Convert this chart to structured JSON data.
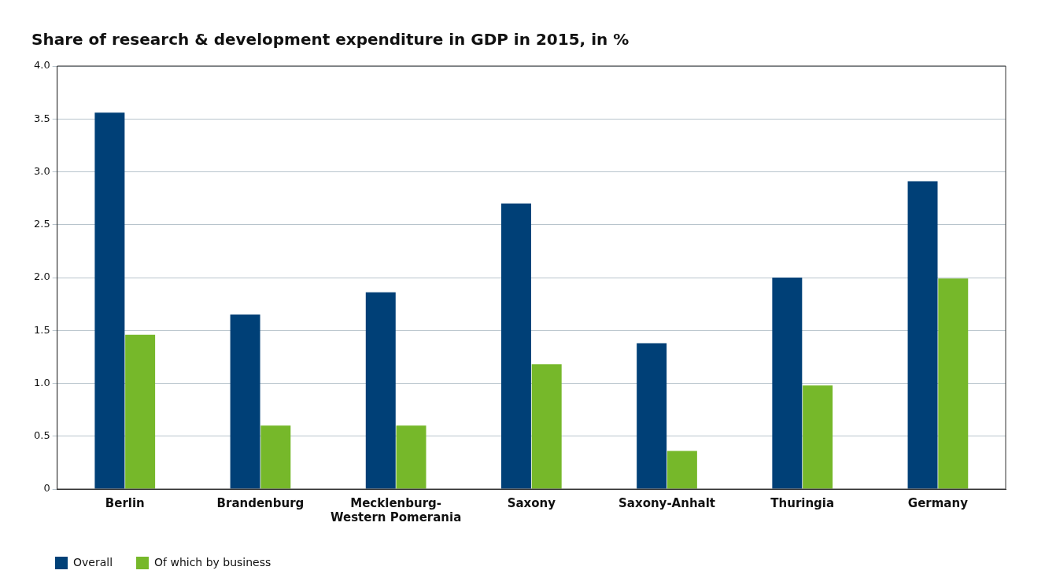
{
  "chart_data": {
    "type": "bar",
    "title": "Share of research & development expenditure in GDP in 2015, in %",
    "categories": [
      "Berlin",
      "Brandenburg",
      "Mecklenburg-Western Pomerania",
      "Saxony",
      "Saxony-Anhalt",
      "Thuringia",
      "Germany"
    ],
    "series": [
      {
        "name": "Overall",
        "color": "#004077",
        "values": [
          3.56,
          1.65,
          1.86,
          2.7,
          1.38,
          2.0,
          2.91
        ]
      },
      {
        "name": "Of which by business",
        "color": "#76b82a",
        "values": [
          1.46,
          0.6,
          0.6,
          1.18,
          0.36,
          0.98,
          1.99
        ]
      }
    ],
    "ylim": [
      0,
      4
    ],
    "yticks": [
      0,
      0.5,
      {
        "value": 1,
        "label": "1.0"
      },
      1.5,
      {
        "value": 2,
        "label": "2.0"
      },
      2.5,
      {
        "value": 3,
        "label": "3.0"
      },
      3.5,
      {
        "value": 4,
        "label": "4.0"
      }
    ],
    "grid": "y",
    "legend": "bottom left"
  }
}
